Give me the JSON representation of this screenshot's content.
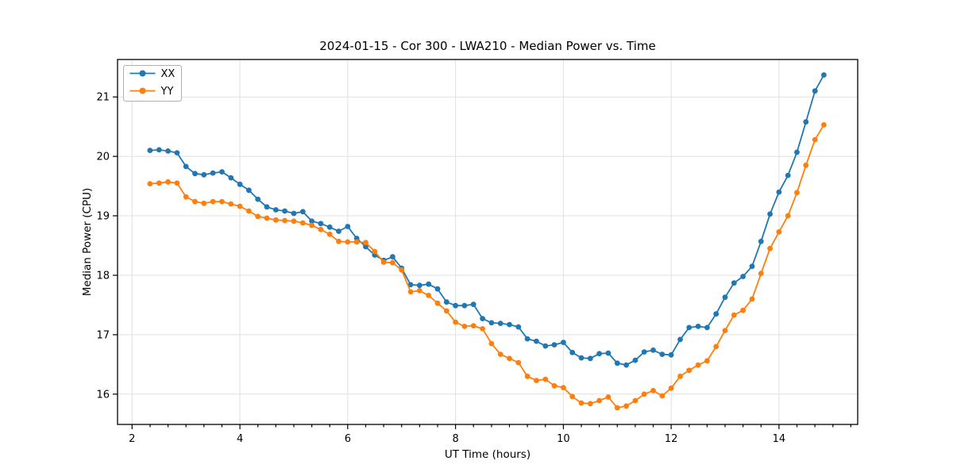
{
  "chart_data": {
    "type": "line",
    "title": "2024-01-15 - Cor 300 - LWA210 - Median Power vs. Time",
    "xlabel": "UT Time (hours)",
    "ylabel": "Median Power (CPU)",
    "xlim": [
      1.73,
      15.46
    ],
    "ylim": [
      15.49,
      21.63
    ],
    "xticks": [
      2,
      4,
      6,
      8,
      10,
      12,
      14
    ],
    "yticks": [
      16,
      17,
      18,
      19,
      20,
      21
    ],
    "x_minor_tick_step": 0.3333,
    "grid": true,
    "legend_position": "upper-left",
    "background_color": "#ffffff",
    "x": [
      2.333,
      2.5,
      2.667,
      2.833,
      3.0,
      3.167,
      3.333,
      3.5,
      3.667,
      3.833,
      4.0,
      4.167,
      4.333,
      4.5,
      4.667,
      4.833,
      5.0,
      5.167,
      5.333,
      5.5,
      5.667,
      5.833,
      6.0,
      6.167,
      6.333,
      6.5,
      6.667,
      6.833,
      7.0,
      7.167,
      7.333,
      7.5,
      7.667,
      7.833,
      8.0,
      8.167,
      8.333,
      8.5,
      8.667,
      8.833,
      9.0,
      9.167,
      9.333,
      9.5,
      9.667,
      9.833,
      10.0,
      10.167,
      10.333,
      10.5,
      10.667,
      10.833,
      11.0,
      11.167,
      11.333,
      11.5,
      11.667,
      11.833,
      12.0,
      12.167,
      12.333,
      12.5,
      12.667,
      12.833,
      13.0,
      13.167,
      13.333,
      13.5,
      13.667,
      13.833,
      14.0,
      14.167,
      14.333,
      14.5,
      14.667,
      14.833
    ],
    "series": [
      {
        "name": "XX",
        "color": "#1f77b4",
        "values": [
          20.1,
          20.11,
          20.09,
          20.06,
          19.83,
          19.71,
          19.69,
          19.72,
          19.74,
          19.64,
          19.53,
          19.43,
          19.28,
          19.15,
          19.1,
          19.08,
          19.04,
          19.07,
          18.91,
          18.87,
          18.81,
          18.74,
          18.82,
          18.62,
          18.48,
          18.34,
          18.25,
          18.31,
          18.12,
          17.84,
          17.83,
          17.85,
          17.77,
          17.55,
          17.49,
          17.49,
          17.51,
          17.27,
          17.2,
          17.19,
          17.17,
          17.13,
          16.93,
          16.89,
          16.81,
          16.83,
          16.87,
          16.7,
          16.61,
          16.6,
          16.68,
          16.69,
          16.52,
          16.49,
          16.57,
          16.71,
          16.74,
          16.67,
          16.66,
          16.92,
          17.12,
          17.14,
          17.12,
          17.35,
          17.63,
          17.87,
          17.98,
          18.15,
          18.57,
          19.03,
          19.4,
          19.68,
          20.07,
          20.58,
          21.1,
          21.37
        ]
      },
      {
        "name": "YY",
        "color": "#ff7f0e",
        "values": [
          19.54,
          19.55,
          19.57,
          19.55,
          19.32,
          19.24,
          19.21,
          19.24,
          19.24,
          19.2,
          19.16,
          19.08,
          18.99,
          18.96,
          18.93,
          18.92,
          18.91,
          18.88,
          18.84,
          18.77,
          18.69,
          18.57,
          18.56,
          18.56,
          18.55,
          18.4,
          18.22,
          18.21,
          18.09,
          17.72,
          17.74,
          17.66,
          17.53,
          17.4,
          17.21,
          17.14,
          17.15,
          17.1,
          16.85,
          16.67,
          16.6,
          16.53,
          16.3,
          16.23,
          16.25,
          16.14,
          16.11,
          15.96,
          15.85,
          15.84,
          15.89,
          15.95,
          15.77,
          15.8,
          15.89,
          16.0,
          16.06,
          15.97,
          16.1,
          16.3,
          16.4,
          16.49,
          16.56,
          16.8,
          17.07,
          17.33,
          17.41,
          17.6,
          18.03,
          18.45,
          18.73,
          19.0,
          19.39,
          19.85,
          20.28,
          20.53
        ]
      }
    ]
  }
}
